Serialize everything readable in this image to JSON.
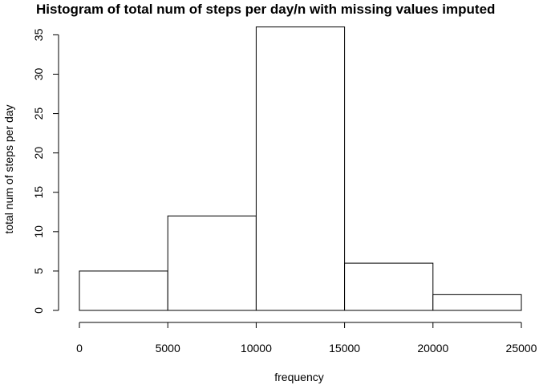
{
  "chart_data": {
    "type": "bar",
    "title": "Histogram of total num of steps per day/n with missing values imputed",
    "xlabel": "frequency",
    "ylabel": "total num of steps per day",
    "bins": [
      {
        "from": 0,
        "to": 5000,
        "count": 5
      },
      {
        "from": 5000,
        "to": 10000,
        "count": 12
      },
      {
        "from": 10000,
        "to": 15000,
        "count": 36
      },
      {
        "from": 15000,
        "to": 20000,
        "count": 6
      },
      {
        "from": 20000,
        "to": 25000,
        "count": 2
      }
    ],
    "xlim": [
      0,
      25000
    ],
    "ylim": [
      0,
      36
    ],
    "x_ticks": [
      0,
      5000,
      10000,
      15000,
      20000,
      25000
    ],
    "y_ticks": [
      0,
      5,
      10,
      15,
      20,
      25,
      30,
      35
    ],
    "grid": false,
    "bar_fill": "#ffffff",
    "bar_stroke": "#000000"
  }
}
